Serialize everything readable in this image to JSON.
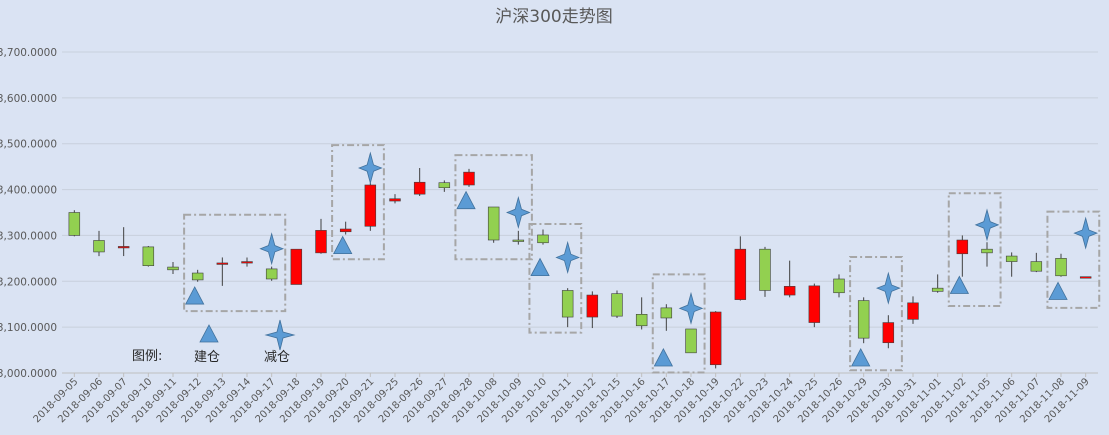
{
  "chart_data": {
    "type": "candlestick",
    "title": "沪深300走势图",
    "ylim": [
      3000,
      3700
    ],
    "yticks": [
      3000,
      3100,
      3200,
      3300,
      3400,
      3500,
      3600,
      3700
    ],
    "ytick_labels": [
      "3,000.0000",
      "3,100.0000",
      "3,200.0000",
      "3,300.0000",
      "3,400.0000",
      "3,500.0000",
      "3,600.0000",
      "3,700.0000"
    ],
    "grid": true,
    "colors": {
      "up": "#ff0000",
      "down": "#92d050",
      "outline": "#404040",
      "marker": "#5b9bd5",
      "box": "#a6a6a6"
    },
    "candles": [
      {
        "date": "2018-09-05",
        "open": 3350,
        "high": 3355,
        "low": 3298,
        "close": 3300
      },
      {
        "date": "2018-09-06",
        "open": 3289,
        "high": 3310,
        "low": 3255,
        "close": 3264
      },
      {
        "date": "2018-09-07",
        "open": 3275,
        "high": 3318,
        "low": 3255,
        "close": 3276
      },
      {
        "date": "2018-09-10",
        "open": 3275,
        "high": 3277,
        "low": 3232,
        "close": 3234
      },
      {
        "date": "2018-09-11",
        "open": 3231,
        "high": 3242,
        "low": 3216,
        "close": 3225
      },
      {
        "date": "2018-09-12",
        "open": 3218,
        "high": 3225,
        "low": 3199,
        "close": 3203
      },
      {
        "date": "2018-09-13",
        "open": 3237,
        "high": 3252,
        "low": 3190,
        "close": 3240
      },
      {
        "date": "2018-09-14",
        "open": 3240,
        "high": 3252,
        "low": 3232,
        "close": 3243
      },
      {
        "date": "2018-09-17",
        "open": 3227,
        "high": 3232,
        "low": 3201,
        "close": 3205
      },
      {
        "date": "2018-09-18",
        "open": 3193,
        "high": 3270,
        "low": 3193,
        "close": 3270
      },
      {
        "date": "2018-09-19",
        "open": 3262,
        "high": 3336,
        "low": 3260,
        "close": 3311
      },
      {
        "date": "2018-09-20",
        "open": 3308,
        "high": 3330,
        "low": 3302,
        "close": 3314
      },
      {
        "date": "2018-09-21",
        "open": 3320,
        "high": 3415,
        "low": 3310,
        "close": 3410
      },
      {
        "date": "2018-09-25",
        "open": 3375,
        "high": 3390,
        "low": 3370,
        "close": 3380
      },
      {
        "date": "2018-09-26",
        "open": 3390,
        "high": 3447,
        "low": 3386,
        "close": 3416
      },
      {
        "date": "2018-09-27",
        "open": 3415,
        "high": 3420,
        "low": 3395,
        "close": 3404
      },
      {
        "date": "2018-09-28",
        "open": 3410,
        "high": 3445,
        "low": 3406,
        "close": 3438
      },
      {
        "date": "2018-10-08",
        "open": 3362,
        "high": 3362,
        "low": 3284,
        "close": 3290
      },
      {
        "date": "2018-10-09",
        "open": 3290,
        "high": 3310,
        "low": 3280,
        "close": 3287
      },
      {
        "date": "2018-10-10",
        "open": 3301,
        "high": 3313,
        "low": 3280,
        "close": 3284
      },
      {
        "date": "2018-10-11",
        "open": 3180,
        "high": 3185,
        "low": 3100,
        "close": 3122
      },
      {
        "date": "2018-10-12",
        "open": 3122,
        "high": 3178,
        "low": 3098,
        "close": 3170
      },
      {
        "date": "2018-10-15",
        "open": 3173,
        "high": 3180,
        "low": 3120,
        "close": 3124
      },
      {
        "date": "2018-10-16",
        "open": 3128,
        "high": 3165,
        "low": 3095,
        "close": 3103
      },
      {
        "date": "2018-10-17",
        "open": 3142,
        "high": 3150,
        "low": 3092,
        "close": 3120
      },
      {
        "date": "2018-10-18",
        "open": 3096,
        "high": 3096,
        "low": 3044,
        "close": 3044
      },
      {
        "date": "2018-10-19",
        "open": 3018,
        "high": 3135,
        "low": 3010,
        "close": 3133
      },
      {
        "date": "2018-10-22",
        "open": 3160,
        "high": 3298,
        "low": 3158,
        "close": 3270
      },
      {
        "date": "2018-10-23",
        "open": 3270,
        "high": 3275,
        "low": 3166,
        "close": 3180
      },
      {
        "date": "2018-10-24",
        "open": 3170,
        "high": 3245,
        "low": 3165,
        "close": 3189
      },
      {
        "date": "2018-10-25",
        "open": 3110,
        "high": 3195,
        "low": 3100,
        "close": 3190
      },
      {
        "date": "2018-10-26",
        "open": 3205,
        "high": 3215,
        "low": 3165,
        "close": 3175
      },
      {
        "date": "2018-10-29",
        "open": 3158,
        "high": 3165,
        "low": 3065,
        "close": 3076
      },
      {
        "date": "2018-10-30",
        "open": 3066,
        "high": 3126,
        "low": 3054,
        "close": 3110
      },
      {
        "date": "2018-10-31",
        "open": 3117,
        "high": 3167,
        "low": 3107,
        "close": 3153
      },
      {
        "date": "2018-11-01",
        "open": 3185,
        "high": 3215,
        "low": 3175,
        "close": 3178
      },
      {
        "date": "2018-11-02",
        "open": 3260,
        "high": 3300,
        "low": 3210,
        "close": 3290
      },
      {
        "date": "2018-11-05",
        "open": 3270,
        "high": 3285,
        "low": 3232,
        "close": 3262
      },
      {
        "date": "2018-11-06",
        "open": 3255,
        "high": 3263,
        "low": 3210,
        "close": 3243
      },
      {
        "date": "2018-11-07",
        "open": 3243,
        "high": 3262,
        "low": 3220,
        "close": 3222
      },
      {
        "date": "2018-11-08",
        "open": 3250,
        "high": 3260,
        "low": 3210,
        "close": 3212
      },
      {
        "date": "2018-11-09",
        "open": 3210,
        "high": 3210,
        "low": 3210,
        "close": 3210
      }
    ],
    "buy_markers": [
      {
        "date": "2018-09-12",
        "y": 3168
      },
      {
        "date": "2018-09-20",
        "y": 3278
      },
      {
        "date": "2018-09-28",
        "y": 3376
      },
      {
        "date": "2018-10-10",
        "y": 3230
      },
      {
        "date": "2018-10-17",
        "y": 3033
      },
      {
        "date": "2018-10-29",
        "y": 3033
      },
      {
        "date": "2018-11-02",
        "y": 3191
      },
      {
        "date": "2018-11-08",
        "y": 3178
      }
    ],
    "sell_markers": [
      {
        "date": "2018-09-17",
        "y": 3271
      },
      {
        "date": "2018-09-21",
        "y": 3447
      },
      {
        "date": "2018-10-09",
        "y": 3350
      },
      {
        "date": "2018-10-11",
        "y": 3252
      },
      {
        "date": "2018-10-18",
        "y": 3141
      },
      {
        "date": "2018-10-30",
        "y": 3185
      },
      {
        "date": "2018-11-05",
        "y": 3323
      },
      {
        "date": "2018-11-09",
        "y": 3305
      }
    ],
    "highlight_boxes": [
      {
        "from": "2018-09-12",
        "to": "2018-09-17",
        "ymin": 3135,
        "ymax": 3345
      },
      {
        "from": "2018-09-20",
        "to": "2018-09-21",
        "ymin": 3248,
        "ymax": 3497
      },
      {
        "from": "2018-09-28",
        "to": "2018-10-09",
        "ymin": 3248,
        "ymax": 3475
      },
      {
        "from": "2018-10-10",
        "to": "2018-10-11",
        "ymin": 3088,
        "ymax": 3325
      },
      {
        "from": "2018-10-17",
        "to": "2018-10-18",
        "ymin": 3001,
        "ymax": 3215
      },
      {
        "from": "2018-10-29",
        "to": "2018-10-30",
        "ymin": 3006,
        "ymax": 3253
      },
      {
        "from": "2018-11-02",
        "to": "2018-11-05",
        "ymin": 3146,
        "ymax": 3392
      },
      {
        "from": "2018-11-08",
        "to": "2018-11-09",
        "ymin": 3142,
        "ymax": 3352
      }
    ],
    "legend": {
      "title": "图例:",
      "buy_label": "建仓",
      "sell_label": "减仓"
    }
  }
}
